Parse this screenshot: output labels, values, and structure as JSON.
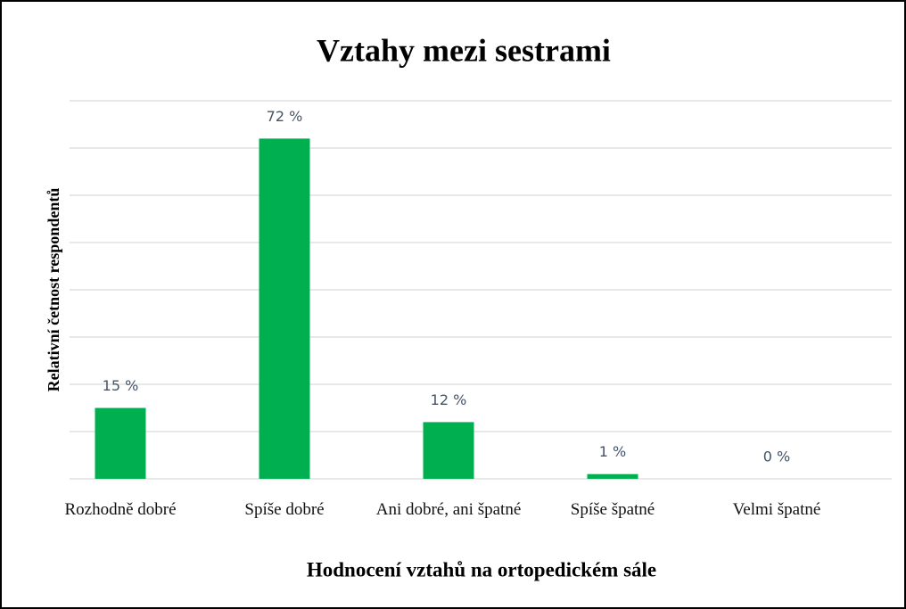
{
  "chart_data": {
    "type": "bar",
    "title": "Vztahy mezi sestrami",
    "x_label": "Hodnocení vztahů na ortopedickém sále",
    "y_label": "Relativní četnost respondentů",
    "categories": [
      "Rozhodně dobré",
      "Spíše dobré",
      "Ani dobré, ani špatné",
      "Spíše špatné",
      "Velmi špatné"
    ],
    "values": [
      15,
      72,
      12,
      1,
      0
    ],
    "value_labels": [
      "15 %",
      "72 %",
      "12 %",
      "1 %",
      "0 %"
    ],
    "color": "#00b050",
    "ylim": [
      0,
      80
    ],
    "yticks": [
      0,
      10,
      20,
      30,
      40,
      50,
      60,
      70,
      80
    ],
    "grid": true
  }
}
